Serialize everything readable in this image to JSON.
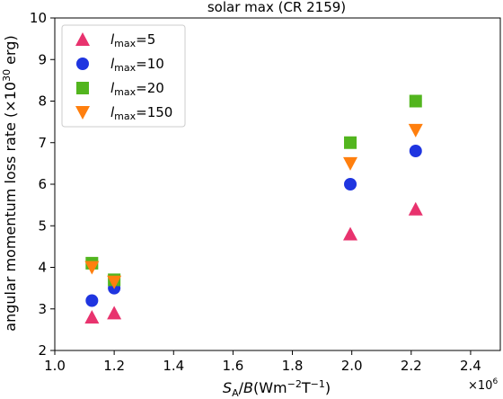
{
  "chart_data": {
    "type": "scatter",
    "title": "solar max (CR 2159)",
    "xlabel": {
      "prefix": "S",
      "sub": "A",
      "rest": "/",
      "italic_b": "B",
      "units": "(Wm",
      "sup1": "−2",
      "mid": "T",
      "sup2": "−1",
      "close": ")"
    },
    "ylabel": {
      "text": "angular momentum loss rate (×10",
      "sup": "30",
      "tail": " erg)"
    },
    "x_multiplier": {
      "base": "×10",
      "exp": "6"
    },
    "xlim": [
      1.0,
      2.5
    ],
    "ylim": [
      2,
      10
    ],
    "xticks": [
      1.0,
      1.2,
      1.4,
      1.6,
      1.8,
      2.0,
      2.2,
      2.4
    ],
    "xtick_labels": [
      "1.0",
      "1.2",
      "1.4",
      "1.6",
      "1.8",
      "2.0",
      "2.2",
      "2.4"
    ],
    "yticks": [
      2,
      3,
      4,
      5,
      6,
      7,
      8,
      9,
      10
    ],
    "ytick_labels": [
      "2",
      "3",
      "4",
      "5",
      "6",
      "7",
      "8",
      "9",
      "10"
    ],
    "grid": false,
    "legend_position": "top-left",
    "series": [
      {
        "name": "l_max=5",
        "label_var": "l",
        "label_sub": "max",
        "label_val": "=5",
        "marker": "triangle-up",
        "color": "#e8336e",
        "points": [
          [
            1.125,
            2.8
          ],
          [
            1.2,
            2.9
          ],
          [
            1.995,
            4.8
          ],
          [
            2.215,
            5.4
          ]
        ]
      },
      {
        "name": "l_max=10",
        "label_var": "l",
        "label_sub": "max",
        "label_val": "=10",
        "marker": "circle",
        "color": "#1f35e0",
        "points": [
          [
            1.125,
            3.2
          ],
          [
            1.2,
            3.5
          ],
          [
            1.995,
            6.0
          ],
          [
            2.215,
            6.8
          ]
        ]
      },
      {
        "name": "l_max=20",
        "label_var": "l",
        "label_sub": "max",
        "label_val": "=20",
        "marker": "square",
        "color": "#52b51e",
        "points": [
          [
            1.125,
            4.1
          ],
          [
            1.2,
            3.7
          ],
          [
            1.995,
            7.0
          ],
          [
            2.215,
            8.0
          ]
        ]
      },
      {
        "name": "l_max=150",
        "label_var": "l",
        "label_sub": "max",
        "label_val": "=150",
        "marker": "triangle-down",
        "color": "#ff7f0e",
        "points": [
          [
            1.125,
            4.0
          ],
          [
            1.2,
            3.65
          ],
          [
            1.995,
            6.5
          ],
          [
            2.215,
            7.3
          ]
        ]
      }
    ]
  }
}
